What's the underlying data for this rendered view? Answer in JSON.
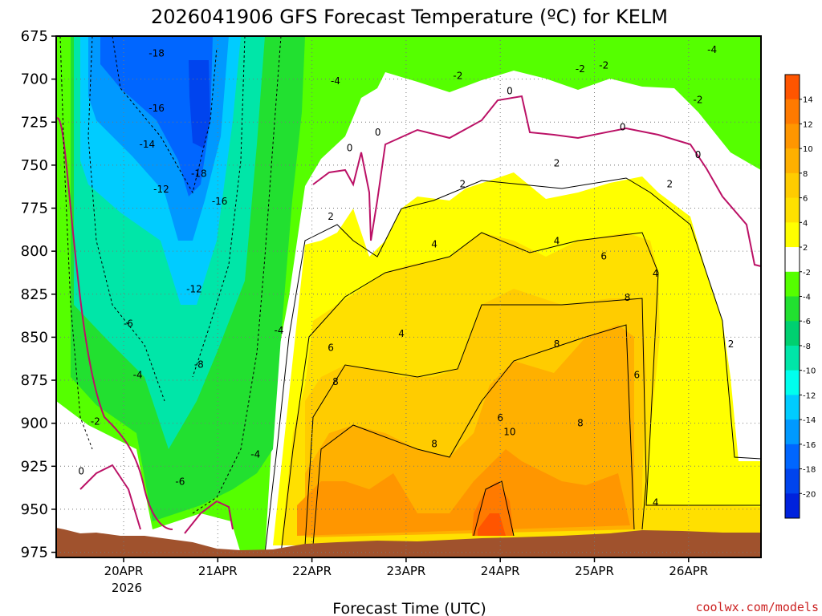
{
  "chart_data": {
    "type": "contour",
    "title": "2026041906  GFS Forecast Temperature (ºC) for KELM",
    "xlabel": "Forecast Time (UTC)",
    "ylabel": "",
    "y_axis": {
      "ticks": [
        "675",
        "700",
        "725",
        "750",
        "775",
        "800",
        "825",
        "850",
        "875",
        "900",
        "925",
        "950",
        "975"
      ],
      "range_hpa": [
        675,
        978
      ]
    },
    "x_axis": {
      "ticks": [
        "20APR",
        "21APR",
        "22APR",
        "23APR",
        "24APR",
        "25APR",
        "26APR"
      ],
      "year_label": "2026"
    },
    "colorbar": {
      "levels": [
        "14",
        "12",
        "10",
        "8",
        "6",
        "4",
        "2",
        "-2",
        "-4",
        "-6",
        "-8",
        "-10",
        "-12",
        "-14",
        "-16",
        "-18",
        "-20"
      ],
      "colors": [
        "#ff5500",
        "#ff7a00",
        "#ff9600",
        "#ffb000",
        "#ffcc00",
        "#ffe000",
        "#ffff00",
        "#ffffff",
        "#55ff00",
        "#22e030",
        "#00d070",
        "#00e6a8",
        "#00ffee",
        "#00ccff",
        "#0099ff",
        "#0066ff",
        "#0044ee",
        "#0022dd"
      ]
    },
    "contour_labels": [
      {
        "text": "-18",
        "t": 0.35,
        "p": 685
      },
      {
        "text": "-16",
        "t": 0.35,
        "p": 717
      },
      {
        "text": "-14",
        "t": 0.25,
        "p": 738
      },
      {
        "text": "-12",
        "t": 0.4,
        "p": 764
      },
      {
        "text": "-18",
        "t": 0.8,
        "p": 755
      },
      {
        "text": "-16",
        "t": 1.02,
        "p": 771
      },
      {
        "text": "-12",
        "t": 0.75,
        "p": 822
      },
      {
        "text": "-8",
        "t": 0.8,
        "p": 866
      },
      {
        "text": "-6",
        "t": 0.05,
        "p": 842
      },
      {
        "text": "-4",
        "t": 0.15,
        "p": 872
      },
      {
        "text": "-2",
        "t": -0.3,
        "p": 899
      },
      {
        "text": "0",
        "t": -0.45,
        "p": 928
      },
      {
        "text": "-6",
        "t": 0.6,
        "p": 934
      },
      {
        "text": "-4",
        "t": 1.4,
        "p": 918
      },
      {
        "text": "-4",
        "t": 1.65,
        "p": 846
      },
      {
        "text": "-4",
        "t": 2.25,
        "p": 701
      },
      {
        "text": "0",
        "t": 2.4,
        "p": 740
      },
      {
        "text": "0",
        "t": 2.7,
        "p": 731
      },
      {
        "text": "2",
        "t": 2.2,
        "p": 780
      },
      {
        "text": "6",
        "t": 2.2,
        "p": 856
      },
      {
        "text": "8",
        "t": 2.25,
        "p": 876
      },
      {
        "text": "4",
        "t": 2.95,
        "p": 848
      },
      {
        "text": "8",
        "t": 3.3,
        "p": 912
      },
      {
        "text": "4",
        "t": 3.3,
        "p": 796
      },
      {
        "text": "2",
        "t": 3.6,
        "p": 761
      },
      {
        "text": "-2",
        "t": 3.55,
        "p": 698
      },
      {
        "text": "0",
        "t": 4.1,
        "p": 707
      },
      {
        "text": "6",
        "t": 4.0,
        "p": 897
      },
      {
        "text": "10",
        "t": 4.1,
        "p": 905
      },
      {
        "text": "8",
        "t": 4.85,
        "p": 900
      },
      {
        "text": "8",
        "t": 4.6,
        "p": 854
      },
      {
        "text": "2",
        "t": 4.6,
        "p": 749
      },
      {
        "text": "4",
        "t": 4.6,
        "p": 794
      },
      {
        "text": "6",
        "t": 5.1,
        "p": 803
      },
      {
        "text": "8",
        "t": 5.35,
        "p": 827
      },
      {
        "text": "6",
        "t": 5.45,
        "p": 872
      },
      {
        "text": "4",
        "t": 5.65,
        "p": 813
      },
      {
        "text": "-2",
        "t": 4.85,
        "p": 694
      },
      {
        "text": "-2",
        "t": 5.1,
        "p": 692
      },
      {
        "text": "0",
        "t": 5.3,
        "p": 728
      },
      {
        "text": "2",
        "t": 5.8,
        "p": 761
      },
      {
        "text": "0",
        "t": 6.1,
        "p": 744
      },
      {
        "text": "-2",
        "t": 6.1,
        "p": 712
      },
      {
        "text": "-4",
        "t": 6.25,
        "p": 683
      },
      {
        "text": "2",
        "t": 6.45,
        "p": 854
      },
      {
        "text": "4",
        "t": 5.65,
        "p": 946
      }
    ]
  },
  "credit": "coolwx.com/models"
}
